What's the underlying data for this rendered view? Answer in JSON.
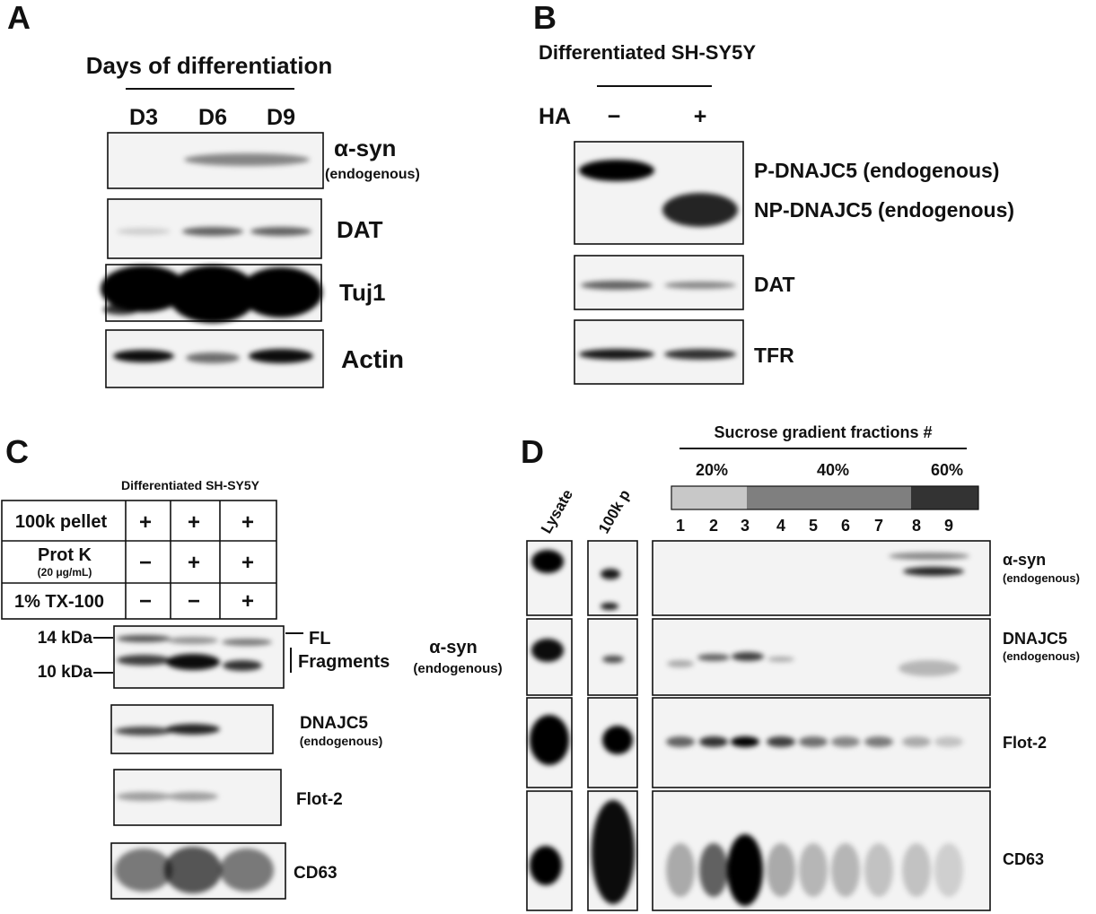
{
  "panel_a": {
    "label": "A",
    "title": "Days of differentiation",
    "lanes": [
      "D3",
      "D6",
      "D9"
    ],
    "blots": [
      {
        "name": "α-syn",
        "note": "(endogenous)"
      },
      {
        "name": "DAT"
      },
      {
        "name": "Tuj1"
      },
      {
        "name": "Actin"
      }
    ]
  },
  "panel_b": {
    "label": "B",
    "title": "Differentiated SH-SY5Y",
    "treatment": "HA",
    "lanes": [
      "−",
      "+"
    ],
    "blots": [
      {
        "name": "P-DNAJC5 (endogenous)"
      },
      {
        "name": "NP-DNAJC5 (endogenous)"
      },
      {
        "name": "DAT"
      },
      {
        "name": "TFR"
      }
    ]
  },
  "panel_c": {
    "label": "C",
    "title": "Differentiated SH-SY5Y",
    "table": {
      "rows": [
        {
          "label": "100k pellet",
          "cells": [
            "+",
            "+",
            "+"
          ]
        },
        {
          "label": "Prot K",
          "note": "(20 μg/mL)",
          "cells": [
            "−",
            "+",
            "+"
          ]
        },
        {
          "label": "1% TX-100",
          "cells": [
            "−",
            "−",
            "+"
          ]
        }
      ]
    },
    "markers": [
      "14 kDa",
      "10 kDa"
    ],
    "band_labels": [
      "FL",
      "Fragments"
    ],
    "blots": [
      {
        "name": "α-syn",
        "note": "(endogenous)"
      },
      {
        "name": "DNAJC5",
        "note": "(endogenous)"
      },
      {
        "name": "Flot-2"
      },
      {
        "name": "CD63"
      }
    ]
  },
  "panel_d": {
    "label": "D",
    "title": "Sucrose gradient fractions #",
    "concentrations": [
      "20%",
      "40%",
      "60%"
    ],
    "fractions": [
      1,
      2,
      3,
      4,
      5,
      6,
      7,
      8,
      9
    ],
    "columns": [
      "Lysate",
      "100k p"
    ],
    "blots": [
      {
        "name": "α-syn",
        "note": "(endogenous)"
      },
      {
        "name": "DNAJC5",
        "note": "(endogenous)"
      },
      {
        "name": "Flot-2"
      },
      {
        "name": "CD63"
      }
    ]
  }
}
